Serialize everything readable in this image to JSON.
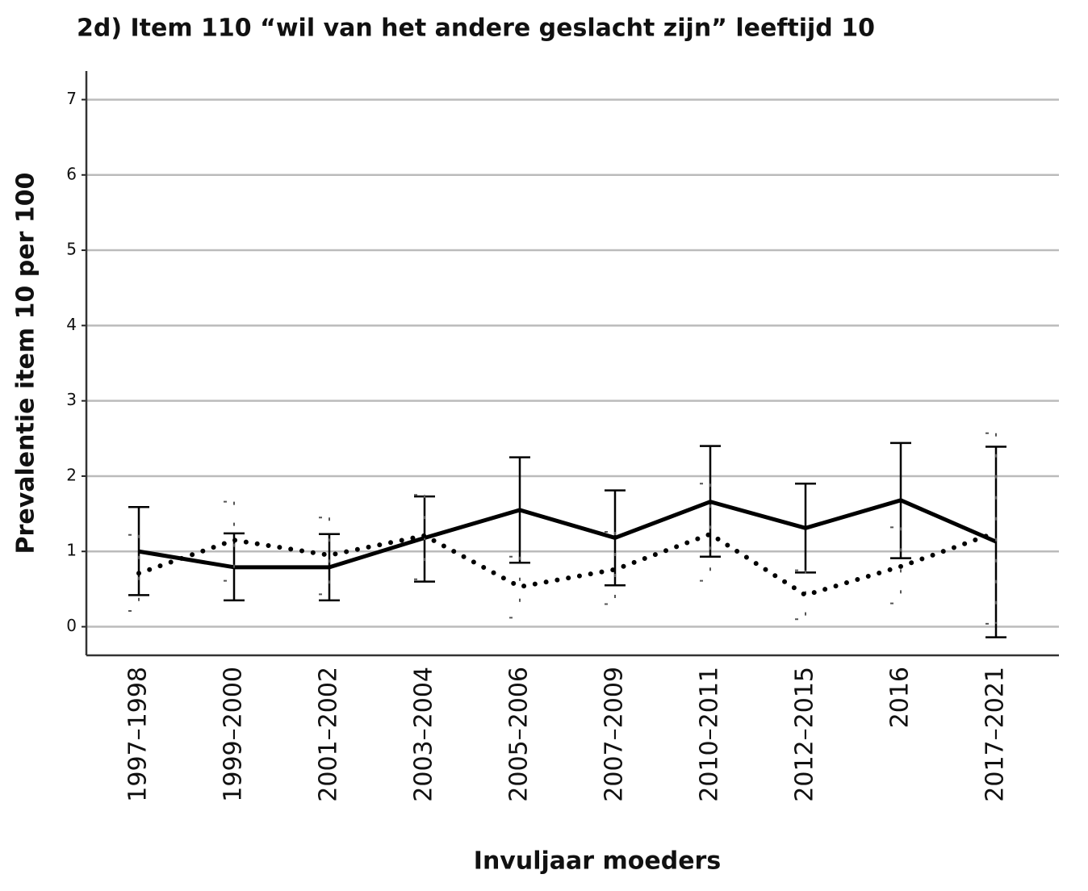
{
  "chart_data": {
    "type": "line",
    "title": "2d) Item 110 “wil van het andere geslacht zijn” leeftijd 10",
    "x_label": "Invuljaar moeders",
    "y_label": "Prevalentie item 10 per 100",
    "categories": [
      "1997–1998",
      "1999–2000",
      "2001–2002",
      "2003–2004",
      "2005–2006",
      "2007–2009",
      "2010–2011",
      "2012–2015",
      "2016",
      "2017–2021"
    ],
    "series": [
      {
        "color": "#000000",
        "dash": "solid",
        "values": [
          1.0,
          0.79,
          0.79,
          1.18,
          1.55,
          1.18,
          1.66,
          1.31,
          1.68,
          1.13
        ],
        "ci_low": [
          0.42,
          0.35,
          0.35,
          0.6,
          0.85,
          0.55,
          0.93,
          0.72,
          0.91,
          -0.14
        ],
        "ci_high": [
          1.59,
          1.24,
          1.23,
          1.73,
          2.25,
          1.81,
          2.4,
          1.9,
          2.44,
          2.39
        ]
      },
      {
        "color": "#000000",
        "dash": "dotted",
        "values": [
          0.71,
          1.15,
          0.95,
          1.21,
          0.53,
          0.76,
          1.23,
          0.42,
          0.8,
          1.25
        ],
        "ci_low": [
          0.21,
          0.61,
          0.43,
          0.63,
          0.12,
          0.3,
          0.61,
          0.1,
          0.31,
          0.04
        ],
        "ci_high": [
          1.22,
          1.66,
          1.45,
          1.75,
          0.93,
          1.26,
          1.9,
          0.75,
          1.32,
          2.57
        ]
      }
    ],
    "ylim": [
      -0.38,
      7.38
    ],
    "yticks": [
      0,
      1,
      2,
      3,
      4,
      5,
      6,
      7
    ],
    "grid": true
  }
}
